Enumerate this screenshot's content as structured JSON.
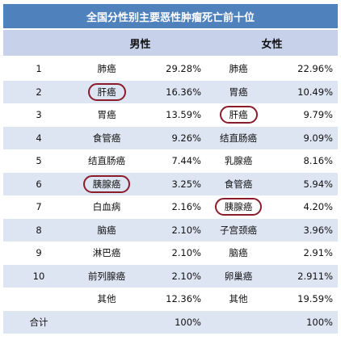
{
  "title": "全国分性别主要恶性肿瘤死亡前十位",
  "header": {
    "male": "男性",
    "female": "女性"
  },
  "rows": [
    {
      "rank": "1",
      "male_name": "肺癌",
      "male_pct": "29.28%",
      "female_name": "肺癌",
      "female_pct": "22.96%"
    },
    {
      "rank": "2",
      "male_name": "肝癌",
      "male_pct": "16.36%",
      "female_name": "胃癌",
      "female_pct": "10.49%"
    },
    {
      "rank": "3",
      "male_name": "胃癌",
      "male_pct": "13.59%",
      "female_name": "肝癌",
      "female_pct": "9.79%"
    },
    {
      "rank": "4",
      "male_name": "食管癌",
      "male_pct": "9.26%",
      "female_name": "结直肠癌",
      "female_pct": "9.09%"
    },
    {
      "rank": "5",
      "male_name": "结直肠癌",
      "male_pct": "7.44%",
      "female_name": "乳腺癌",
      "female_pct": "8.16%"
    },
    {
      "rank": "6",
      "male_name": "胰腺癌",
      "male_pct": "3.25%",
      "female_name": "食管癌",
      "female_pct": "5.94%"
    },
    {
      "rank": "7",
      "male_name": "白血病",
      "male_pct": "2.16%",
      "female_name": "胰腺癌",
      "female_pct": "4.20%"
    },
    {
      "rank": "8",
      "male_name": "脑癌",
      "male_pct": "2.10%",
      "female_name": "子宫颈癌",
      "female_pct": "3.96%"
    },
    {
      "rank": "9",
      "male_name": "淋巴癌",
      "male_pct": "2.10%",
      "female_name": "脑癌",
      "female_pct": "2.91%"
    },
    {
      "rank": "10",
      "male_name": "前列腺癌",
      "male_pct": "2.10%",
      "female_name": "卵巢癌",
      "female_pct": "2.911%"
    },
    {
      "rank": "",
      "male_name": "其他",
      "male_pct": "12.36%",
      "female_name": "其他",
      "female_pct": "19.59%"
    },
    {
      "rank": "合计",
      "male_name": "",
      "male_pct": "100%",
      "female_name": "",
      "female_pct": "100%"
    }
  ],
  "highlight_color": "#8a1c2c",
  "header_color": "#4f81bd"
}
